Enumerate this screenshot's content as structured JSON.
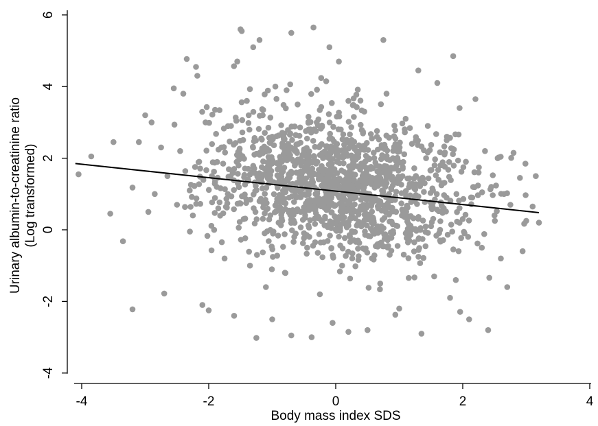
{
  "chart_data": {
    "type": "scatter",
    "xlabel": "Body mass index SDS",
    "ylabel_line1": "Urinary albumin-to-creatinine ratio",
    "ylabel_line2": "(Log transformed)",
    "xlim": [
      -4.2,
      4
    ],
    "ylim": [
      -4.2,
      6.2
    ],
    "xticks": [
      -4,
      -2,
      0,
      2,
      4
    ],
    "yticks": [
      -4,
      -2,
      0,
      2,
      4,
      6
    ],
    "xtick_labels": [
      "-4",
      "-2",
      "0",
      "2",
      "4"
    ],
    "ytick_labels": [
      "-4",
      "-2",
      "0",
      "2",
      "4",
      "6"
    ],
    "grid": false,
    "legend": "none",
    "point_color": "#9a9a9a",
    "line_color": "#000000",
    "fit_line": {
      "x": [
        -4.1,
        3.2
      ],
      "y": [
        1.85,
        0.48
      ]
    },
    "points": [
      {
        "x": -4.05,
        "y": 1.55
      },
      {
        "x": -3.85,
        "y": 2.05
      },
      {
        "x": -3.5,
        "y": 2.45
      },
      {
        "x": -3.55,
        "y": 0.45
      },
      {
        "x": -3.35,
        "y": -0.32
      },
      {
        "x": -3.2,
        "y": -2.22
      },
      {
        "x": -3.2,
        "y": 1.18
      },
      {
        "x": -3.1,
        "y": 2.45
      },
      {
        "x": -3.0,
        "y": 3.2
      },
      {
        "x": -2.95,
        "y": 0.5
      },
      {
        "x": -2.9,
        "y": 3.0
      },
      {
        "x": -2.85,
        "y": 1.0
      },
      {
        "x": -2.75,
        "y": 2.3
      },
      {
        "x": -2.7,
        "y": -1.78
      },
      {
        "x": -2.65,
        "y": 1.5
      },
      {
        "x": -2.55,
        "y": 3.95
      },
      {
        "x": -2.5,
        "y": 0.7
      },
      {
        "x": -2.45,
        "y": 2.2
      },
      {
        "x": -2.4,
        "y": 3.8
      },
      {
        "x": -2.3,
        "y": 1.1
      },
      {
        "x": -2.25,
        "y": 0.4
      },
      {
        "x": -2.2,
        "y": 4.55
      },
      {
        "x": -2.18,
        "y": 4.3
      },
      {
        "x": -2.15,
        "y": 1.9
      },
      {
        "x": -2.1,
        "y": -2.1
      },
      {
        "x": -2.05,
        "y": 3.0
      },
      {
        "x": -2.0,
        "y": -2.25
      },
      {
        "x": -1.95,
        "y": 1.5
      },
      {
        "x": -1.9,
        "y": 3.35
      },
      {
        "x": -1.85,
        "y": 0.6
      },
      {
        "x": -1.8,
        "y": 2.3
      },
      {
        "x": -1.75,
        "y": -0.8
      },
      {
        "x": -1.7,
        "y": 1.0
      },
      {
        "x": -1.65,
        "y": 2.9
      },
      {
        "x": -1.6,
        "y": -2.4
      },
      {
        "x": -1.6,
        "y": 1.7
      },
      {
        "x": -1.55,
        "y": 4.7
      },
      {
        "x": -1.5,
        "y": 5.6
      },
      {
        "x": -1.48,
        "y": 5.55
      },
      {
        "x": -1.45,
        "y": 0.3
      },
      {
        "x": -1.4,
        "y": 3.6
      },
      {
        "x": -1.38,
        "y": 1.4
      },
      {
        "x": -1.35,
        "y": -1.0
      },
      {
        "x": -1.3,
        "y": 5.1
      },
      {
        "x": -1.28,
        "y": 2.1
      },
      {
        "x": -1.25,
        "y": -3.02
      },
      {
        "x": -1.2,
        "y": 5.3
      },
      {
        "x": -1.2,
        "y": 0.8
      },
      {
        "x": -1.15,
        "y": 3.2
      },
      {
        "x": -1.1,
        "y": -1.6
      },
      {
        "x": -1.05,
        "y": 1.3
      },
      {
        "x": -1.0,
        "y": 2.6
      },
      {
        "x": -1.0,
        "y": -2.5
      },
      {
        "x": -0.95,
        "y": 4.0
      },
      {
        "x": -0.9,
        "y": 0.2
      },
      {
        "x": -0.85,
        "y": 1.9
      },
      {
        "x": -0.8,
        "y": -1.2
      },
      {
        "x": -0.75,
        "y": 2.4
      },
      {
        "x": -0.7,
        "y": 5.5
      },
      {
        "x": -0.7,
        "y": -2.95
      },
      {
        "x": -0.65,
        "y": 1.1
      },
      {
        "x": -0.6,
        "y": 3.5
      },
      {
        "x": -0.55,
        "y": 0.5
      },
      {
        "x": -0.5,
        "y": 2.2
      },
      {
        "x": -0.45,
        "y": -0.5
      },
      {
        "x": -0.42,
        "y": 1.6
      },
      {
        "x": -0.38,
        "y": -3.0
      },
      {
        "x": -0.35,
        "y": 5.65
      },
      {
        "x": -0.3,
        "y": 3.0
      },
      {
        "x": -0.28,
        "y": 0.9
      },
      {
        "x": -0.25,
        "y": -1.8
      },
      {
        "x": -0.2,
        "y": 2.0
      },
      {
        "x": -0.15,
        "y": 4.15
      },
      {
        "x": -0.1,
        "y": 5.1
      },
      {
        "x": -0.1,
        "y": 1.3
      },
      {
        "x": -0.05,
        "y": -2.6
      },
      {
        "x": 0.0,
        "y": 0.0
      },
      {
        "x": 0.02,
        "y": 1.9
      },
      {
        "x": 0.05,
        "y": 4.7
      },
      {
        "x": 0.08,
        "y": 2.8
      },
      {
        "x": 0.1,
        "y": -1.0
      },
      {
        "x": 0.15,
        "y": 1.4
      },
      {
        "x": 0.2,
        "y": -2.85
      },
      {
        "x": 0.2,
        "y": 3.6
      },
      {
        "x": 0.25,
        "y": 0.6
      },
      {
        "x": 0.3,
        "y": 2.3
      },
      {
        "x": 0.35,
        "y": -0.3
      },
      {
        "x": 0.4,
        "y": 1.0
      },
      {
        "x": 0.45,
        "y": 3.3
      },
      {
        "x": 0.5,
        "y": -2.8
      },
      {
        "x": 0.55,
        "y": 1.7
      },
      {
        "x": 0.6,
        "y": 0.2
      },
      {
        "x": 0.65,
        "y": 2.6
      },
      {
        "x": 0.7,
        "y": -1.5
      },
      {
        "x": 0.75,
        "y": 5.3
      },
      {
        "x": 0.78,
        "y": 1.2
      },
      {
        "x": 0.8,
        "y": 3.8
      },
      {
        "x": 0.85,
        "y": -0.7
      },
      {
        "x": 0.9,
        "y": 2.0
      },
      {
        "x": 0.95,
        "y": 0.5
      },
      {
        "x": 1.0,
        "y": -2.2
      },
      {
        "x": 1.05,
        "y": 1.5
      },
      {
        "x": 1.1,
        "y": 3.1
      },
      {
        "x": 1.15,
        "y": -0.2
      },
      {
        "x": 1.2,
        "y": 2.4
      },
      {
        "x": 1.25,
        "y": 0.9
      },
      {
        "x": 1.3,
        "y": 4.45
      },
      {
        "x": 1.35,
        "y": -2.9
      },
      {
        "x": 1.4,
        "y": 1.3
      },
      {
        "x": 1.45,
        "y": 2.9
      },
      {
        "x": 1.5,
        "y": 0.1
      },
      {
        "x": 1.55,
        "y": -1.3
      },
      {
        "x": 1.6,
        "y": 4.1
      },
      {
        "x": 1.65,
        "y": 1.8
      },
      {
        "x": 1.7,
        "y": 0.6
      },
      {
        "x": 1.75,
        "y": 2.6
      },
      {
        "x": 1.8,
        "y": -1.9
      },
      {
        "x": 1.85,
        "y": 4.85
      },
      {
        "x": 1.9,
        "y": 1.0
      },
      {
        "x": 1.95,
        "y": 3.4
      },
      {
        "x": 2.0,
        "y": 0.3
      },
      {
        "x": 2.05,
        "y": 1.9
      },
      {
        "x": 2.1,
        "y": -2.5
      },
      {
        "x": 2.15,
        "y": 0.9
      },
      {
        "x": 2.2,
        "y": 3.65
      },
      {
        "x": 2.25,
        "y": 1.6
      },
      {
        "x": 2.3,
        "y": -0.5
      },
      {
        "x": 2.35,
        "y": 2.2
      },
      {
        "x": 2.4,
        "y": -2.8
      },
      {
        "x": 2.45,
        "y": 1.2
      },
      {
        "x": 2.5,
        "y": 0.4
      },
      {
        "x": 2.55,
        "y": 2.0
      },
      {
        "x": 2.6,
        "y": -0.8
      },
      {
        "x": 2.65,
        "y": 1.0
      },
      {
        "x": 2.7,
        "y": -1.6
      },
      {
        "x": 2.75,
        "y": 0.7
      },
      {
        "x": 2.8,
        "y": 2.15
      },
      {
        "x": 2.9,
        "y": 1.45
      },
      {
        "x": 3.0,
        "y": 0.25
      },
      {
        "x": 3.1,
        "y": 0.65
      },
      {
        "x": 3.15,
        "y": 1.5
      },
      {
        "x": 3.2,
        "y": 0.2
      }
    ],
    "cluster": {
      "note_free": true,
      "center": [
        0.0,
        1.25
      ],
      "sd": [
        1.0,
        1.0
      ],
      "count": 1400,
      "seed": 20240517
    }
  }
}
